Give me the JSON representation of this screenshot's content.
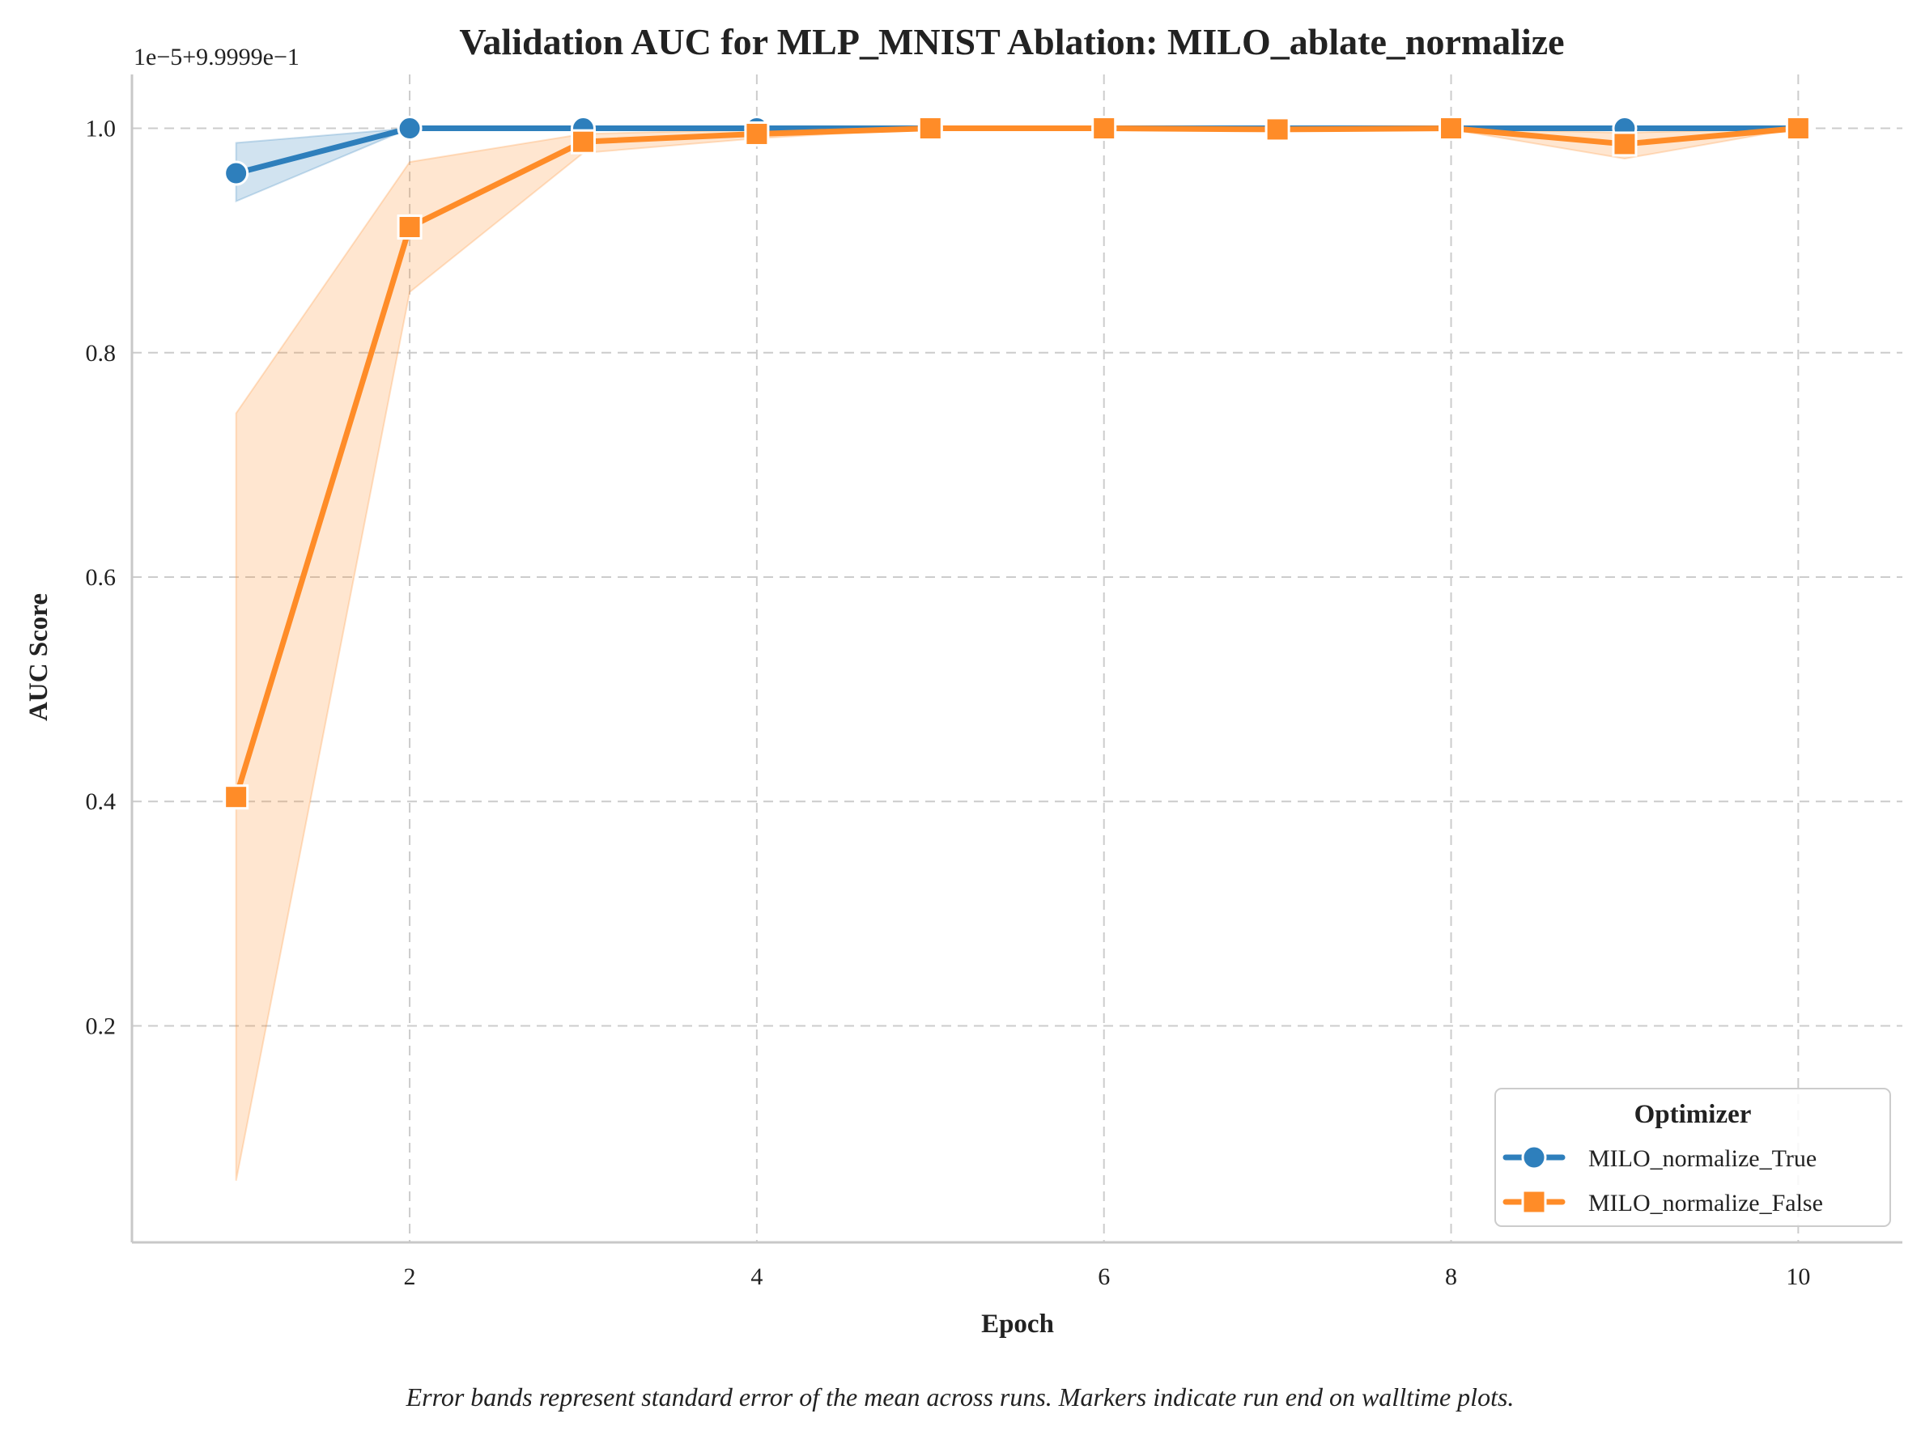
{
  "chart_data": {
    "type": "line",
    "title": "Validation AUC for MLP_MNIST Ablation: MILO_ablate_normalize",
    "xlabel": "Epoch",
    "ylabel": "AUC Score",
    "y_offset_label": "1e−5+9.9999e−1",
    "x": [
      1,
      2,
      3,
      4,
      5,
      6,
      7,
      8,
      9,
      10
    ],
    "xlim": [
      0.4,
      10.6
    ],
    "ylim": [
      0.007,
      1.048
    ],
    "x_ticks": [
      2,
      4,
      6,
      8,
      10
    ],
    "x_tick_labels": [
      "2",
      "4",
      "6",
      "8",
      "10"
    ],
    "y_ticks": [
      0.2,
      0.4,
      0.6,
      0.8,
      1.0
    ],
    "y_tick_labels": [
      "0.2",
      "0.4",
      "0.6",
      "0.8",
      "1.0"
    ],
    "grid": true,
    "series": [
      {
        "name": "MILO_normalize_True",
        "color": "#2e7fbc",
        "marker": "circle",
        "values": [
          0.96,
          1.0,
          1.0,
          1.0,
          1.0,
          1.0,
          1.0,
          1.0,
          1.0,
          1.0
        ],
        "band_lower": [
          0.935,
          1.0,
          1.0,
          1.0,
          1.0,
          1.0,
          1.0,
          1.0,
          1.0,
          1.0
        ],
        "band_upper": [
          0.987,
          1.0,
          1.0,
          1.0,
          1.0,
          1.0,
          1.0,
          1.0,
          1.0,
          1.0
        ]
      },
      {
        "name": "MILO_normalize_False",
        "color": "#ff8c28",
        "marker": "square",
        "values": [
          0.404,
          0.912,
          0.988,
          0.995,
          1.0,
          1.0,
          0.999,
          1.0,
          0.986,
          1.0
        ],
        "band_lower": [
          0.062,
          0.854,
          0.978,
          0.991,
          1.0,
          1.0,
          0.998,
          0.999,
          0.973,
          1.0
        ],
        "band_upper": [
          0.746,
          0.97,
          0.995,
          0.999,
          1.0,
          1.0,
          1.0,
          1.0,
          0.996,
          1.0
        ]
      }
    ],
    "legend": {
      "title": "Optimizer",
      "placement": "lower-right"
    },
    "caption": "Error bands represent standard error of the mean across runs. Markers indicate run end on walltime plots."
  }
}
